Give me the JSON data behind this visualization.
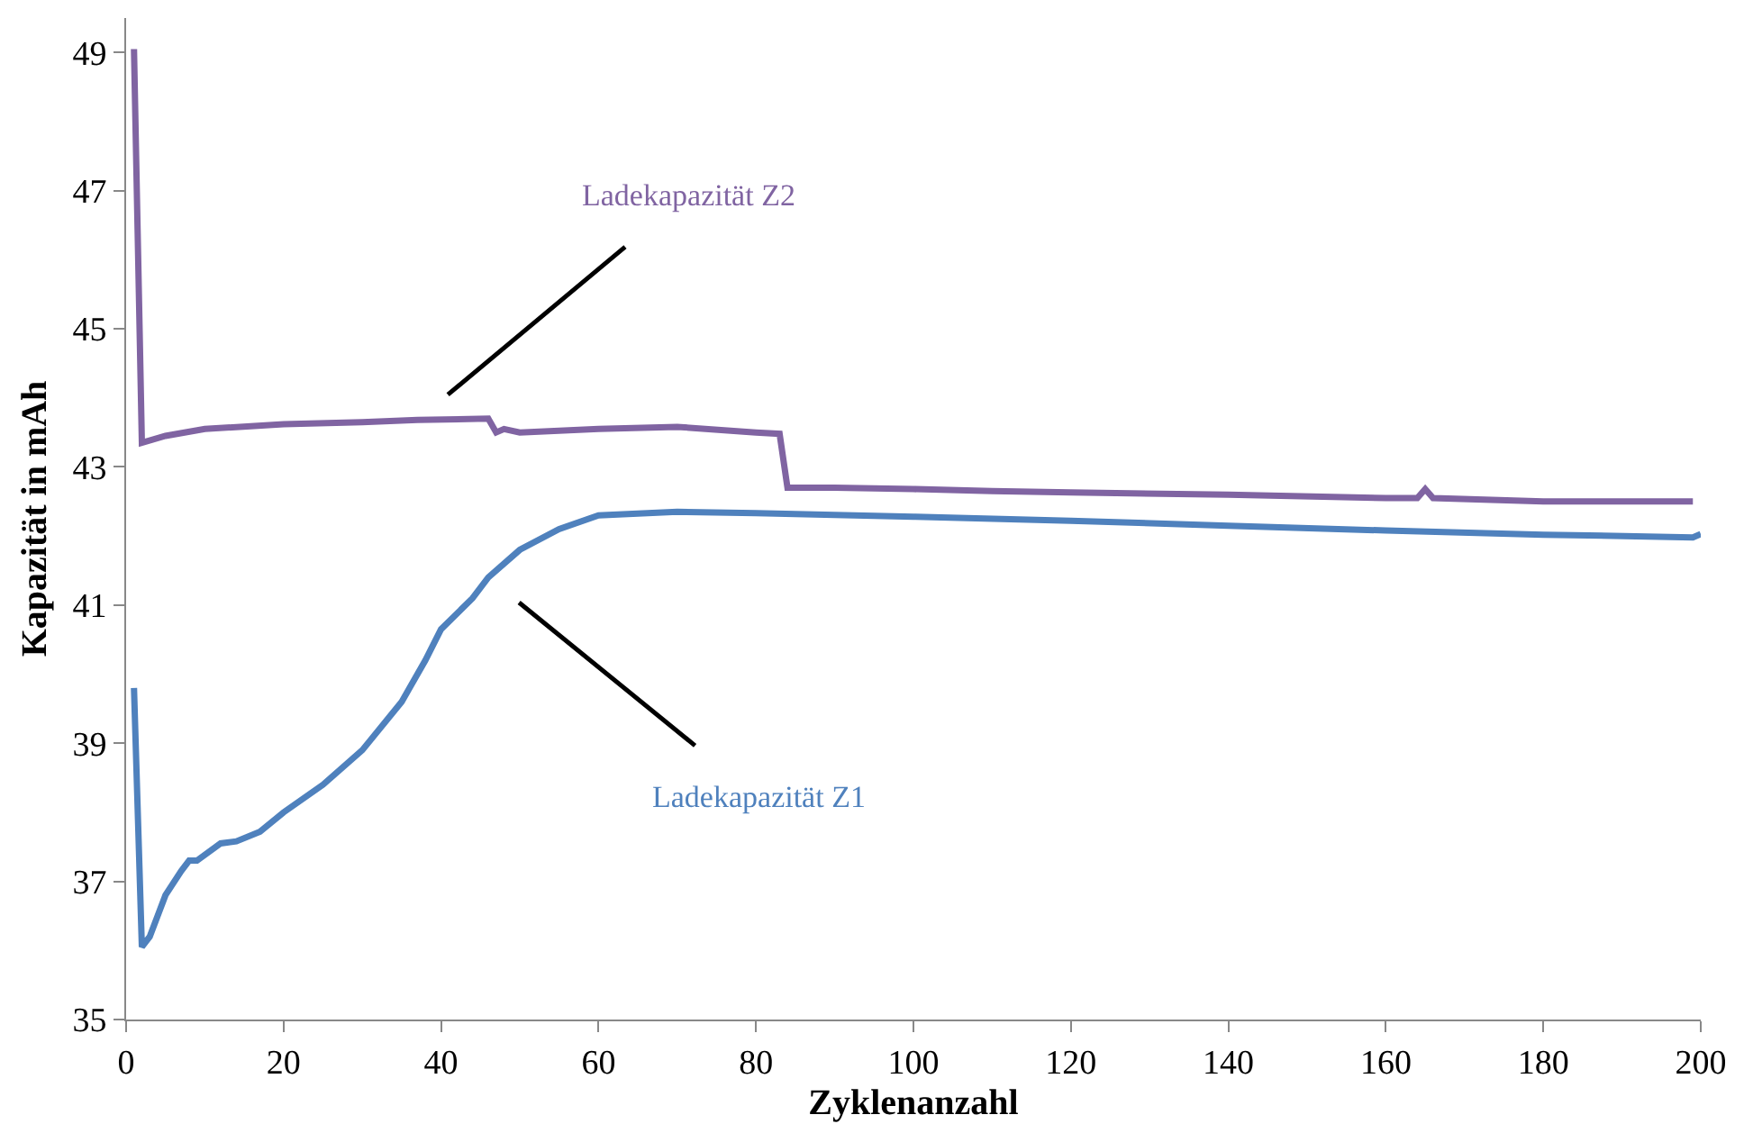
{
  "chart_data": {
    "type": "line",
    "xlabel": "Zyklenanzahl",
    "ylabel": "Kapazität in mAh",
    "xlim": [
      0,
      200
    ],
    "xticks": [
      0,
      20,
      40,
      60,
      80,
      100,
      120,
      140,
      160,
      180,
      200
    ],
    "ylim": [
      35,
      49.5
    ],
    "yticks": [
      35,
      37,
      39,
      41,
      43,
      45,
      47,
      49
    ],
    "marker": "none",
    "line_style": "solid",
    "series": [
      {
        "name": "Ladekapazität Z2",
        "color": "#8064a2",
        "x": [
          1,
          2,
          5,
          10,
          20,
          30,
          37,
          46,
          47,
          48,
          50,
          60,
          70,
          80,
          83,
          84,
          90,
          100,
          110,
          120,
          140,
          160,
          164,
          165,
          166,
          180,
          190,
          199
        ],
        "values": [
          49.05,
          43.35,
          43.45,
          43.55,
          43.62,
          43.65,
          43.68,
          43.7,
          43.5,
          43.55,
          43.5,
          43.55,
          43.58,
          43.5,
          43.48,
          42.7,
          42.7,
          42.68,
          42.65,
          42.63,
          42.6,
          42.55,
          42.55,
          42.68,
          42.55,
          42.5,
          42.5,
          42.5
        ]
      },
      {
        "name": "Ladekapazität Z1",
        "color": "#4f81bd",
        "x": [
          1,
          2,
          3,
          5,
          7,
          8,
          9,
          12,
          14,
          17,
          20,
          25,
          30,
          35,
          38,
          40,
          44,
          46,
          50,
          55,
          60,
          70,
          80,
          100,
          120,
          140,
          160,
          180,
          199,
          200
        ],
        "values": [
          39.8,
          36.05,
          36.2,
          36.8,
          37.15,
          37.3,
          37.3,
          37.55,
          37.58,
          37.72,
          38.0,
          38.4,
          38.9,
          39.6,
          40.2,
          40.65,
          41.1,
          41.4,
          41.8,
          42.1,
          42.3,
          42.35,
          42.33,
          42.28,
          42.22,
          42.15,
          42.08,
          42.02,
          41.98,
          42.03
        ]
      }
    ]
  }
}
